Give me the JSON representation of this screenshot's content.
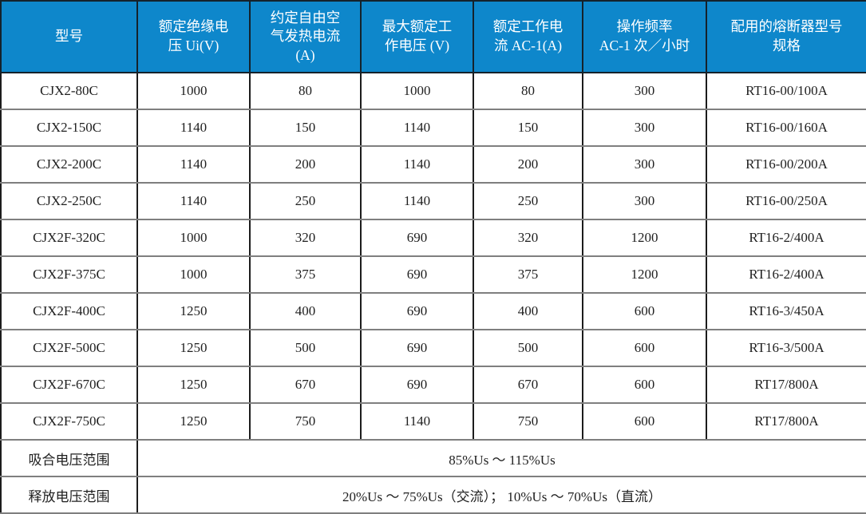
{
  "table": {
    "columns": [
      "型号",
      "额定绝缘电\n压 Ui(V)",
      "约定自由空\n气发热电流\n(A)",
      "最大额定工\n作电压 (V)",
      "额定工作电\n流 AC-1(A)",
      "操作频率\nAC-1 次／小时",
      "配用的熔断器型号\n规格"
    ],
    "rows": [
      [
        "CJX2-80C",
        "1000",
        "80",
        "1000",
        "80",
        "300",
        "RT16-00/100A"
      ],
      [
        "CJX2-150C",
        "1140",
        "150",
        "1140",
        "150",
        "300",
        "RT16-00/160A"
      ],
      [
        "CJX2-200C",
        "1140",
        "200",
        "1140",
        "200",
        "300",
        "RT16-00/200A"
      ],
      [
        "CJX2-250C",
        "1140",
        "250",
        "1140",
        "250",
        "300",
        "RT16-00/250A"
      ],
      [
        "CJX2F-320C",
        "1000",
        "320",
        "690",
        "320",
        "1200",
        "RT16-2/400A"
      ],
      [
        "CJX2F-375C",
        "1000",
        "375",
        "690",
        "375",
        "1200",
        "RT16-2/400A"
      ],
      [
        "CJX2F-400C",
        "1250",
        "400",
        "690",
        "400",
        "600",
        "RT16-3/450A"
      ],
      [
        "CJX2F-500C",
        "1250",
        "500",
        "690",
        "500",
        "600",
        "RT16-3/500A"
      ],
      [
        "CJX2F-670C",
        "1250",
        "670",
        "690",
        "670",
        "600",
        "RT17/800A"
      ],
      [
        "CJX2F-750C",
        "1250",
        "750",
        "1140",
        "750",
        "600",
        "RT17/800A"
      ]
    ],
    "footer_rows": [
      {
        "label": "吸合电压范围",
        "value": "85%Us ～ 115%Us"
      },
      {
        "label": "释放电压范围",
        "value": "20%Us ～ 75%Us（交流）； 10%Us ～ 70%Us（直流）"
      }
    ],
    "colors": {
      "header_bg": "#0e87cb",
      "header_text": "#ffffff",
      "border_vertical": "#1c1c1c",
      "border_horizontal": "#7f7f7f",
      "body_text": "#1f1f1f"
    }
  }
}
